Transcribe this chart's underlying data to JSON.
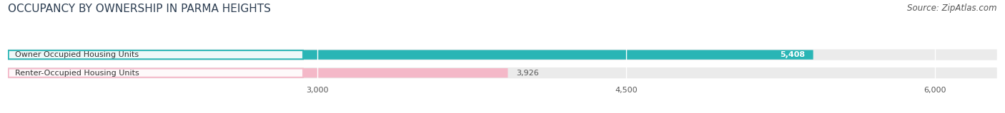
{
  "title": "OCCUPANCY BY OWNERSHIP IN PARMA HEIGHTS",
  "source": "Source: ZipAtlas.com",
  "bars": [
    {
      "label": "Owner Occupied Housing Units",
      "value": 5408,
      "color": "#29b5b5",
      "label_border": "#29b5b5",
      "value_color": "#ffffff",
      "value_inside": true
    },
    {
      "label": "Renter-Occupied Housing Units",
      "value": 3926,
      "color": "#f4b8c8",
      "label_border": "#f4b8c8",
      "value_color": "#555555",
      "value_inside": false
    }
  ],
  "xmin": 1500,
  "xmax": 6300,
  "xticks": [
    3000,
    4500,
    6000
  ],
  "bar_height": 0.52,
  "background_color": "#ffffff",
  "bar_bg_color": "#ebebeb",
  "title_fontsize": 11,
  "source_fontsize": 8.5,
  "label_fontsize": 8,
  "value_fontsize": 8
}
